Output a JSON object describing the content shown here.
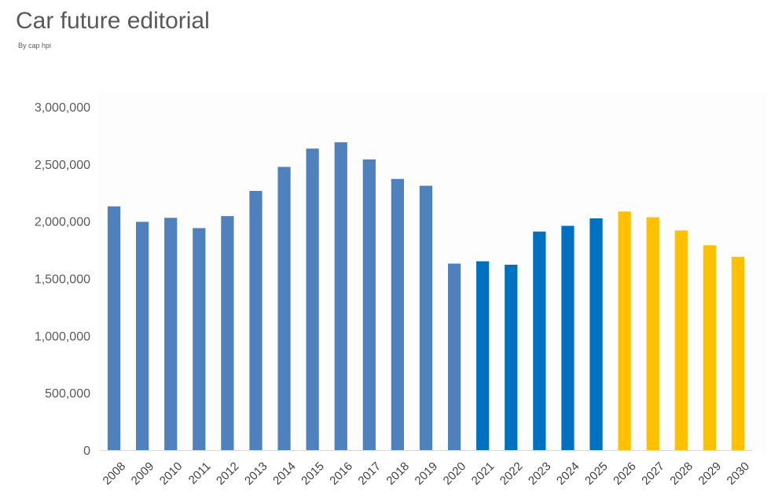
{
  "header": {
    "title": "Car future editorial",
    "subtitle": "By cap hpi"
  },
  "chart_data": {
    "type": "bar",
    "categories": [
      "2008",
      "2009",
      "2010",
      "2011",
      "2012",
      "2013",
      "2014",
      "2015",
      "2016",
      "2017",
      "2018",
      "2019",
      "2020",
      "2021",
      "2022",
      "2023",
      "2024",
      "2025",
      "2026",
      "2027",
      "2028",
      "2029",
      "2030"
    ],
    "values": [
      2130000,
      1995000,
      2030000,
      1940000,
      2045000,
      2265000,
      2475000,
      2635000,
      2690000,
      2540000,
      2370000,
      2310000,
      1630000,
      1650000,
      1620000,
      1910000,
      1960000,
      2025000,
      2085000,
      2035000,
      1920000,
      1790000,
      1690000
    ],
    "bar_colors": [
      "#4f81bd",
      "#4f81bd",
      "#4f81bd",
      "#4f81bd",
      "#4f81bd",
      "#4f81bd",
      "#4f81bd",
      "#4f81bd",
      "#4f81bd",
      "#4f81bd",
      "#4f81bd",
      "#4f81bd",
      "#4f81bd",
      "#0070c0",
      "#0070c0",
      "#0070c0",
      "#0070c0",
      "#0070c0",
      "#ffc000",
      "#ffc000",
      "#ffc000",
      "#ffc000",
      "#ffc000"
    ],
    "title": "",
    "xlabel": "",
    "ylabel": "",
    "ylim": [
      0,
      3000000
    ],
    "yticks": [
      0,
      500000,
      1000000,
      1500000,
      2000000,
      2500000,
      3000000
    ],
    "ytick_labels": [
      "0",
      "500,000",
      "1,000,000",
      "1,500,000",
      "2,000,000",
      "2,500,000",
      "3,000,000"
    ],
    "grid": false,
    "legend": "none"
  }
}
